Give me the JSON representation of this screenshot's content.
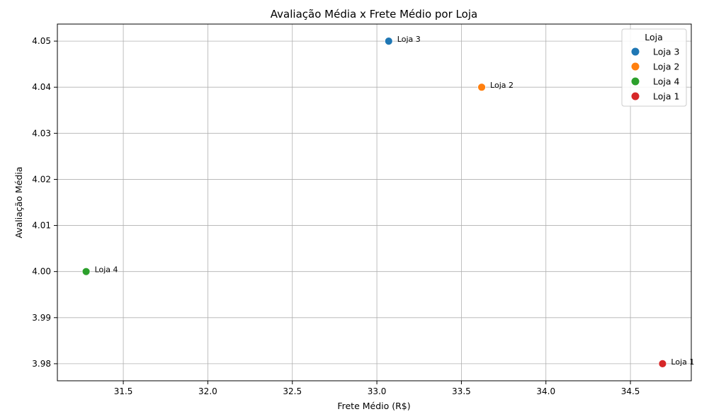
{
  "chart_data": {
    "type": "scatter",
    "title": "Avaliação Média x Frete Médio por Loja",
    "xlabel": "Frete Médio (R$)",
    "ylabel": "Avaliação Média",
    "xlim": [
      31.11,
      34.86
    ],
    "ylim": [
      3.9763,
      4.0537
    ],
    "x_ticks": [
      31.5,
      32.0,
      32.5,
      33.0,
      33.5,
      34.0,
      34.5
    ],
    "x_tick_labels": [
      "31.5",
      "32.0",
      "32.5",
      "33.0",
      "33.5",
      "34.0",
      "34.5"
    ],
    "y_ticks": [
      3.98,
      3.99,
      4.0,
      4.01,
      4.02,
      4.03,
      4.04,
      4.05
    ],
    "y_tick_labels": [
      "3.98",
      "3.99",
      "4.00",
      "4.01",
      "4.02",
      "4.03",
      "4.04",
      "4.05"
    ],
    "grid": true,
    "legend": {
      "title": "Loja",
      "placement": "top-right"
    },
    "series": [
      {
        "name": "Loja 3",
        "color": "#1f77b4",
        "points": [
          {
            "x": 33.07,
            "y": 4.05
          }
        ],
        "label": "Loja 3"
      },
      {
        "name": "Loja 2",
        "color": "#ff7f0e",
        "points": [
          {
            "x": 33.62,
            "y": 4.04
          }
        ],
        "label": "Loja 2"
      },
      {
        "name": "Loja 4",
        "color": "#2ca02c",
        "points": [
          {
            "x": 31.28,
            "y": 4.0
          }
        ],
        "label": "Loja 4"
      },
      {
        "name": "Loja 1",
        "color": "#d62728",
        "points": [
          {
            "x": 34.69,
            "y": 3.98
          }
        ],
        "label": "Loja 1"
      }
    ]
  }
}
